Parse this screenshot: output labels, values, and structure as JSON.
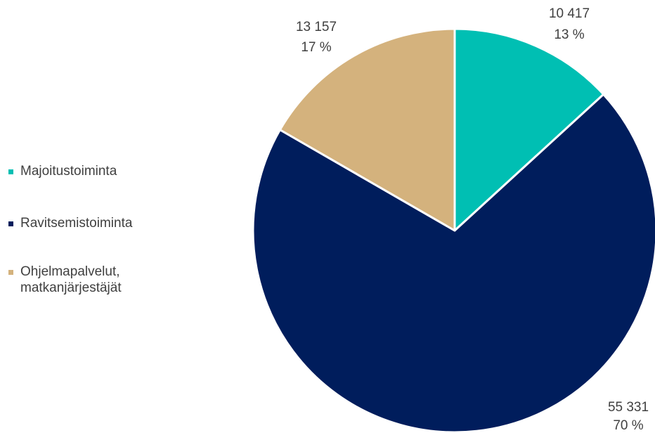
{
  "chart_data": {
    "type": "pie",
    "title": "",
    "slices": [
      {
        "label": "Majoitustoiminta",
        "value": 10417,
        "value_text": "10 417",
        "percent_text": "13 %",
        "color": "#00BFB3"
      },
      {
        "label": "Ravitsemistoiminta",
        "value": 55331,
        "value_text": "55 331",
        "percent_text": "70 %",
        "color": "#001D5C"
      },
      {
        "label": "Ohjelmapalvelut, matkanjärjestäjät",
        "label_lines": [
          "Ohjelmapalvelut,",
          "matkanjärjestäjät"
        ],
        "value": 13157,
        "value_text": "13 157",
        "percent_text": "17 %",
        "color": "#D4B27D"
      }
    ],
    "start_angle": "12 o'clock",
    "direction": "clockwise",
    "legend_position": "left"
  }
}
